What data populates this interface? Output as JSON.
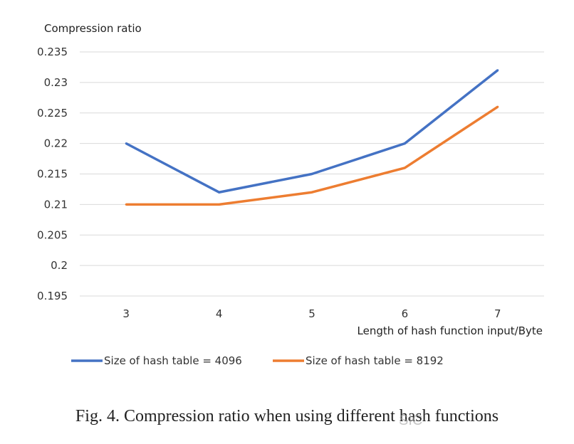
{
  "chart_data": {
    "type": "line",
    "title": "",
    "ylabel": "Compression ratio",
    "xlabel": "Length of hash function input/Byte",
    "categories": [
      "3",
      "4",
      "5",
      "6",
      "7"
    ],
    "ylim": [
      0.195,
      0.235
    ],
    "yticks": [
      "0.235",
      "0.23",
      "0.225",
      "0.22",
      "0.215",
      "0.21",
      "0.205",
      "0.2",
      "0.195"
    ],
    "ytick_values": [
      0.235,
      0.23,
      0.225,
      0.22,
      0.215,
      0.21,
      0.205,
      0.2,
      0.195
    ],
    "grid": true,
    "legend_position": "bottom-left",
    "series": [
      {
        "name": "Size of hash table = 4096",
        "color": "#4472C4",
        "values": [
          0.22,
          0.212,
          0.215,
          0.22,
          0.232
        ]
      },
      {
        "name": "Size of hash table = 8192",
        "color": "#ED7D31",
        "values": [
          0.21,
          0.21,
          0.212,
          0.216,
          0.226
        ]
      }
    ]
  },
  "caption": "Fig. 4.  Compression ratio when using different hash functions",
  "watermark": "SIC",
  "colors": {
    "grid": "#d9d9d9",
    "background": "#ffffff"
  }
}
